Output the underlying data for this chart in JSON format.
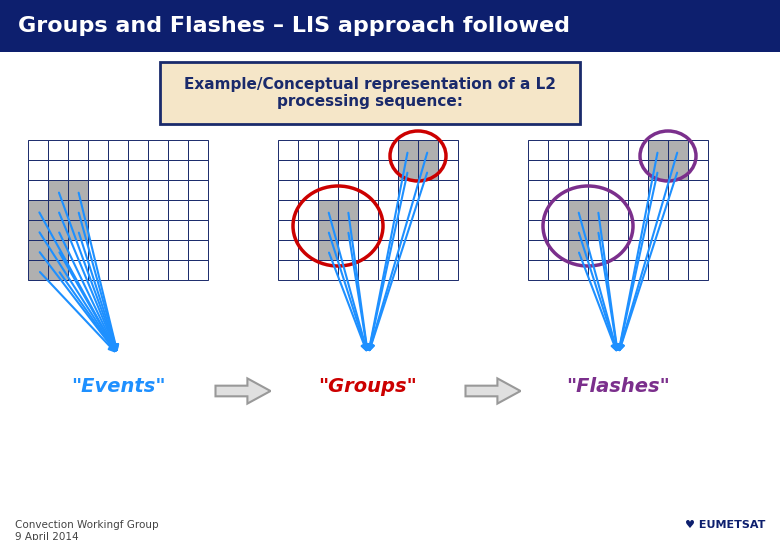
{
  "title": "Groups and Flashes – LIS approach followed",
  "title_bg": "#0d1f6e",
  "title_fg": "#ffffff",
  "bg_color": "#ffffff",
  "subtitle_box_text": "Example/Conceptual representation of a L2\nprocessing sequence:",
  "subtitle_box_bg": "#f5e6c8",
  "subtitle_box_border": "#1a2a6b",
  "label_events": "\"Events\"",
  "label_groups": "\"Groups\"",
  "label_flashes": "\"Flashes\"",
  "events_color": "#1e90ff",
  "groups_color": "#cc0000",
  "flashes_color": "#7b2f8c",
  "arrow_color": "#1e90ff",
  "grid_color": "#1a2a6b",
  "cell_fill": "#b0b0b0",
  "footer_text": "Convection Workingf Group\n9 April 2014",
  "grid_cols": 9,
  "grid_rows": 7,
  "cw": 20,
  "ch": 20
}
